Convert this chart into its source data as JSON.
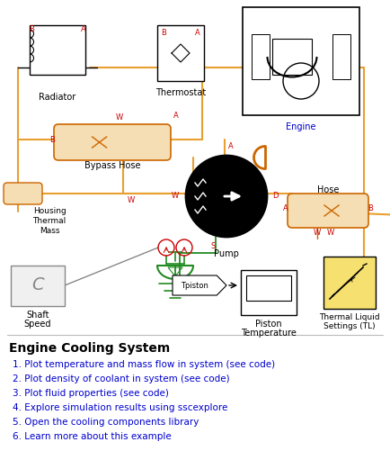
{
  "title": "Engine Cooling System",
  "background_color": "#ffffff",
  "orange": "#E8A030",
  "dark_orange": "#CC6600",
  "red": "#CC0000",
  "green": "#228B22",
  "black": "#000000",
  "blue": "#0000CC",
  "gray": "#888888",
  "list_items": [
    "1. Plot temperature and mass flow in system (see code)",
    "2. Plot density of coolant in system (see code)",
    "3. Plot fluid properties (see code)",
    "4. Explore simulation results using sscexplore",
    "5. Open the cooling components library",
    "6. Learn more about this example"
  ]
}
